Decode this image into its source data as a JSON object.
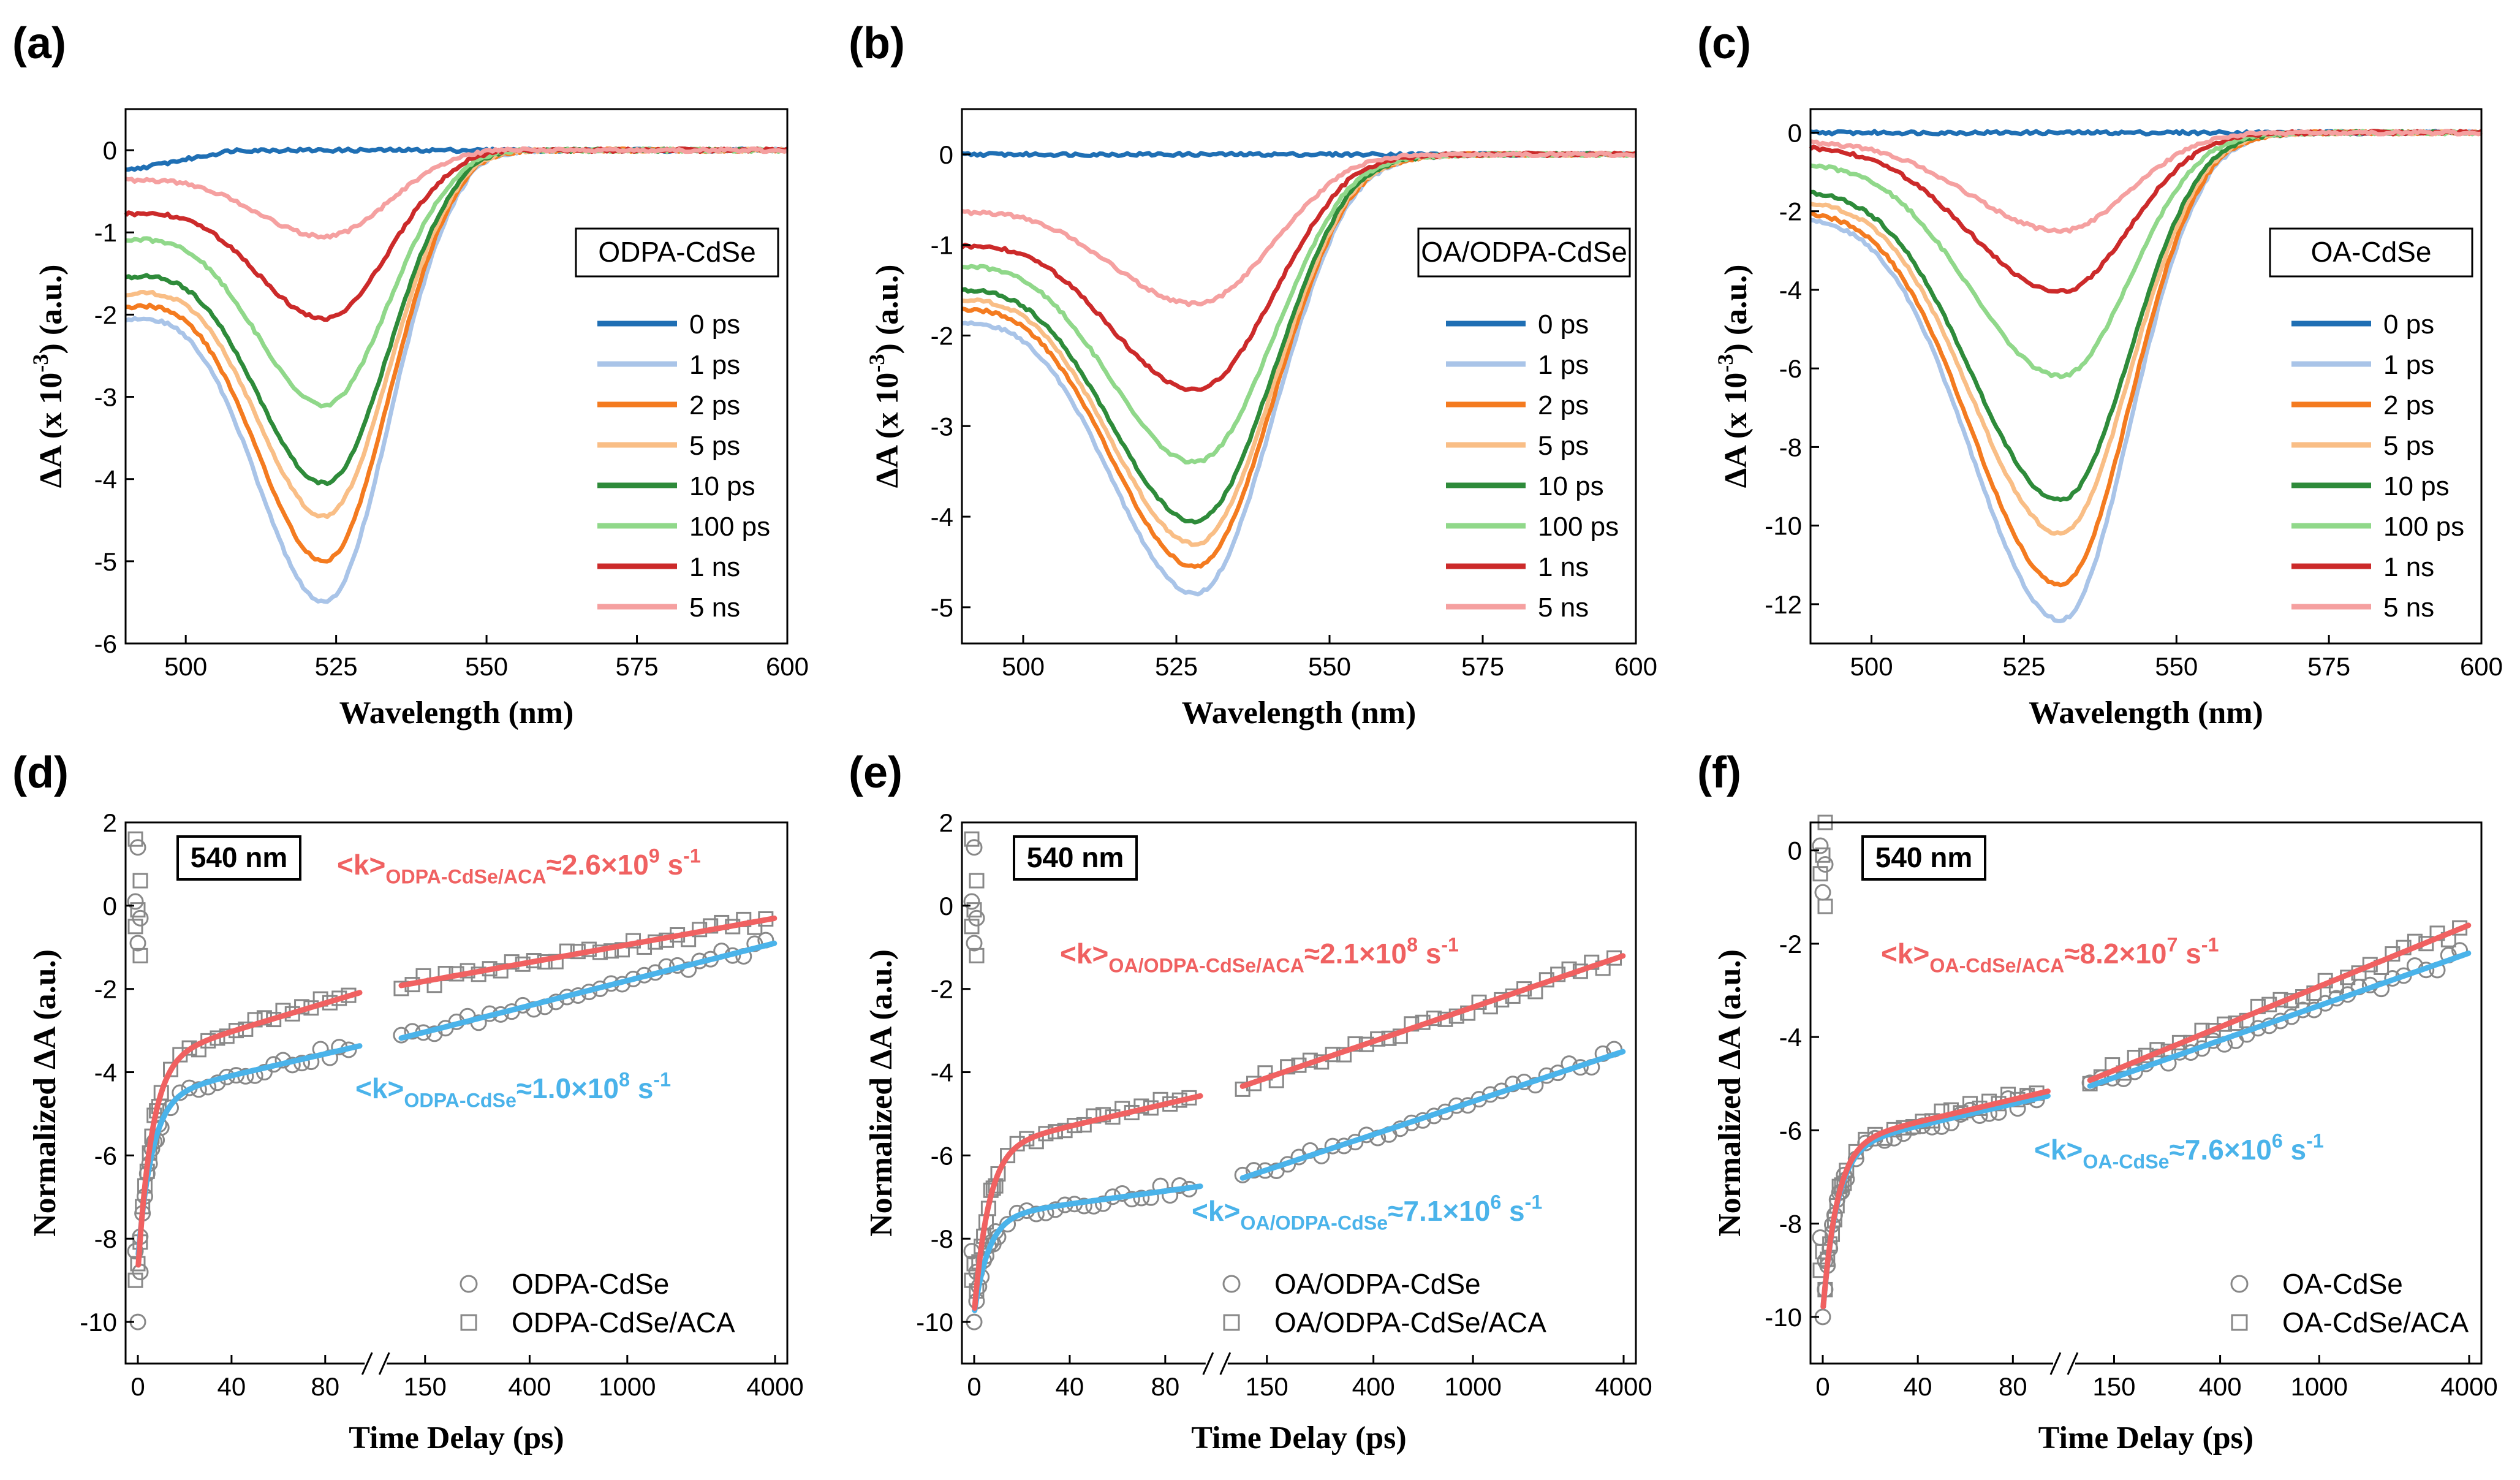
{
  "chart_data": [
    {
      "id": "a",
      "panel_label": "(a)",
      "type": "line",
      "xlabel": "Wavelength (nm)",
      "ylabel_main": "ΔA (x 10",
      "ylabel_sup": "-3",
      "ylabel_tail": ") (a.u.)",
      "xlim": [
        490,
        600
      ],
      "ylim": [
        -6,
        0.5
      ],
      "xticks": [
        500,
        525,
        550,
        575,
        600
      ],
      "xtick_labels": [
        "500",
        "525",
        "550",
        "575",
        "600"
      ],
      "yticks": [
        0,
        -1,
        -2,
        -3,
        -4,
        -5,
        -6
      ],
      "ytick_labels": [
        "0",
        "-1",
        "-2",
        "-3",
        "-4",
        "-5",
        "-6"
      ],
      "sample_label": "ODPA-CdSe",
      "spectral": {
        "center": 523,
        "sigma_left": 12,
        "sigma_right": 10,
        "floor_start": 490
      },
      "series": [
        {
          "name": "0 ps",
          "color": "#1f6fb4",
          "depth": 0.0,
          "offset": -0.25
        },
        {
          "name": "1 ps",
          "color": "#a9c4e8",
          "depth": 5.5,
          "offset": -2.0
        },
        {
          "name": "2 ps",
          "color": "#f47b20",
          "depth": 5.0,
          "offset": -1.85
        },
        {
          "name": "5 ps",
          "color": "#f9be86",
          "depth": 4.45,
          "offset": -1.7
        },
        {
          "name": "10 ps",
          "color": "#2e8b3a",
          "depth": 4.05,
          "offset": -1.5
        },
        {
          "name": "100 ps",
          "color": "#90d88a",
          "depth": 3.1,
          "offset": -1.05
        },
        {
          "name": "1 ns",
          "color": "#cc2a2a",
          "depth": 2.05,
          "offset": -0.75
        },
        {
          "name": "5 ns",
          "color": "#f5a0a0",
          "depth": 1.05,
          "offset": -0.35
        }
      ]
    },
    {
      "id": "b",
      "panel_label": "(b)",
      "type": "line",
      "xlabel": "Wavelength (nm)",
      "ylabel_main": "ΔA (x 10",
      "ylabel_sup": "-3",
      "ylabel_tail": ") (a.u.)",
      "xlim": [
        490,
        600
      ],
      "ylim": [
        -5.4,
        0.5
      ],
      "xticks": [
        500,
        525,
        550,
        575,
        600
      ],
      "xtick_labels": [
        "500",
        "525",
        "550",
        "575",
        "600"
      ],
      "yticks": [
        0,
        -1,
        -2,
        -3,
        -4,
        -5
      ],
      "ytick_labels": [
        "0",
        "-1",
        "-2",
        "-3",
        "-4",
        "-5"
      ],
      "sample_label": "OA/ODPA-CdSe",
      "spectral": {
        "center": 528,
        "sigma_left": 15,
        "sigma_right": 12,
        "floor_start": 490
      },
      "series": [
        {
          "name": "0 ps",
          "color": "#1f6fb4",
          "depth": 0.0,
          "offset": 0.0
        },
        {
          "name": "1 ps",
          "color": "#a9c4e8",
          "depth": 4.85,
          "offset": -1.75
        },
        {
          "name": "2 ps",
          "color": "#f47b20",
          "depth": 4.55,
          "offset": -1.6
        },
        {
          "name": "5 ps",
          "color": "#f9be86",
          "depth": 4.3,
          "offset": -1.5
        },
        {
          "name": "10 ps",
          "color": "#2e8b3a",
          "depth": 4.05,
          "offset": -1.4
        },
        {
          "name": "100 ps",
          "color": "#90d88a",
          "depth": 3.4,
          "offset": -1.15
        },
        {
          "name": "1 ns",
          "color": "#cc2a2a",
          "depth": 2.6,
          "offset": -0.95
        },
        {
          "name": "5 ns",
          "color": "#f5a0a0",
          "depth": 1.65,
          "offset": -0.6
        }
      ]
    },
    {
      "id": "c",
      "panel_label": "(c)",
      "type": "line",
      "xlabel": "Wavelength (nm)",
      "ylabel_main": "ΔA (x 10",
      "ylabel_sup": "-3",
      "ylabel_tail": ") (a.u.)",
      "xlim": [
        490,
        600
      ],
      "ylim": [
        -13,
        0.6
      ],
      "xticks": [
        500,
        525,
        550,
        575,
        600
      ],
      "xtick_labels": [
        "500",
        "525",
        "550",
        "575",
        "600"
      ],
      "yticks": [
        0,
        -2,
        -4,
        -6,
        -8,
        -10,
        -12
      ],
      "ytick_labels": [
        "0",
        "-2",
        "-4",
        "-6",
        "-8",
        "-10",
        "-12"
      ],
      "sample_label": "OA-CdSe",
      "spectral": {
        "center": 531,
        "sigma_left": 15,
        "sigma_right": 11,
        "floor_start": 490
      },
      "series": [
        {
          "name": "0 ps",
          "color": "#1f6fb4",
          "depth": 0.0,
          "offset": 0.0
        },
        {
          "name": "1 ps",
          "color": "#a9c4e8",
          "depth": 12.4,
          "offset": -2.0
        },
        {
          "name": "2 ps",
          "color": "#f47b20",
          "depth": 11.5,
          "offset": -1.85
        },
        {
          "name": "5 ps",
          "color": "#f9be86",
          "depth": 10.2,
          "offset": -1.6
        },
        {
          "name": "10 ps",
          "color": "#2e8b3a",
          "depth": 9.35,
          "offset": -1.35
        },
        {
          "name": "100 ps",
          "color": "#90d88a",
          "depth": 6.2,
          "offset": -0.7
        },
        {
          "name": "1 ns",
          "color": "#cc2a2a",
          "depth": 4.05,
          "offset": -0.3
        },
        {
          "name": "5 ns",
          "color": "#f5a0a0",
          "depth": 2.5,
          "offset": -0.2
        }
      ]
    },
    {
      "id": "d",
      "panel_label": "(d)",
      "type": "scatter",
      "xlabel": "Time Delay (ps)",
      "ylabel": "Normalized ΔA (a.u.)",
      "probe_label": "540 nm",
      "ylim": [
        -11,
        2
      ],
      "yticks": [
        2,
        0,
        -2,
        -4,
        -6,
        -8,
        -10
      ],
      "ytick_labels": [
        "2",
        "0",
        "-2",
        "-4",
        "-6",
        "-8",
        "-10"
      ],
      "x_left": [
        -5,
        100
      ],
      "x_right_log": [
        100,
        4000
      ],
      "xticks_left": [
        0,
        40,
        80
      ],
      "xticks_right": [
        150,
        400,
        1000,
        4000
      ],
      "xtick_labels_left": [
        "0",
        "40",
        "80"
      ],
      "xtick_labels_right": [
        "150",
        "400",
        "1000",
        "4000"
      ],
      "decay": {
        "aca": {
          "start": -8.8,
          "mid": -2.0,
          "end": -0.3
        },
        "pure": {
          "start": -8.5,
          "mid": -3.3,
          "end": -0.9
        }
      },
      "legend": [
        "ODPA-CdSe",
        "ODPA-CdSe/ACA"
      ],
      "rate_aca": {
        "prefix": "<k>",
        "sub": "ODPA-CdSe/ACA",
        "mid": "≈2.6×10",
        "exp": "9",
        "unit": " s",
        "unit_exp": "-1",
        "color": "#f06161"
      },
      "rate_pure": {
        "prefix": "<k>",
        "sub": "ODPA-CdSe",
        "mid": "≈1.0×10",
        "exp": "8",
        "unit": " s",
        "unit_exp": "-1",
        "color": "#4ab3ea"
      }
    },
    {
      "id": "e",
      "panel_label": "(e)",
      "type": "scatter",
      "xlabel": "Time Delay (ps)",
      "ylabel": "Normalized ΔA (a.u.)",
      "probe_label": "540 nm",
      "ylim": [
        -11,
        2
      ],
      "yticks": [
        2,
        0,
        -2,
        -4,
        -6,
        -8,
        -10
      ],
      "ytick_labels": [
        "2",
        "0",
        "-2",
        "-4",
        "-6",
        "-8",
        "-10"
      ],
      "x_left": [
        -5,
        100
      ],
      "x_right_log": [
        100,
        4000
      ],
      "xticks_left": [
        0,
        40,
        80
      ],
      "xticks_right": [
        150,
        400,
        1000,
        4000
      ],
      "xtick_labels_left": [
        "0",
        "40",
        "80"
      ],
      "xtick_labels_right": [
        "150",
        "400",
        "1000",
        "4000"
      ],
      "decay": {
        "aca": {
          "start": -9.8,
          "mid": -4.5,
          "end": -1.2
        },
        "pure": {
          "start": -9.8,
          "mid": -6.7,
          "end": -3.5
        }
      },
      "legend": [
        "OA/ODPA-CdSe",
        "OA/ODPA-CdSe/ACA"
      ],
      "rate_aca": {
        "prefix": "<k>",
        "sub": "OA/ODPA-CdSe/ACA",
        "mid": "≈2.1×10",
        "exp": "8",
        "unit": " s",
        "unit_exp": "-1",
        "color": "#f06161"
      },
      "rate_pure": {
        "prefix": "<k>",
        "sub": "OA/ODPA-CdSe",
        "mid": "≈7.1×10",
        "exp": "6",
        "unit": " s",
        "unit_exp": "-1",
        "color": "#4ab3ea"
      }
    },
    {
      "id": "f",
      "panel_label": "(f)",
      "type": "scatter",
      "xlabel": "Time Delay (ps)",
      "ylabel": "Normalized ΔA (a.u.)",
      "probe_label": "540 nm",
      "ylim": [
        -11,
        0.6
      ],
      "yticks": [
        0,
        -2,
        -4,
        -6,
        -8,
        -10
      ],
      "ytick_labels": [
        "0",
        "-2",
        "-4",
        "-6",
        "-8",
        "-10"
      ],
      "x_left": [
        -5,
        100
      ],
      "x_right_log": [
        100,
        4000
      ],
      "xticks_left": [
        0,
        40,
        80
      ],
      "xticks_right": [
        150,
        400,
        1000,
        4000
      ],
      "xtick_labels_left": [
        "0",
        "40",
        "80"
      ],
      "xtick_labels_right": [
        "150",
        "400",
        "1000",
        "4000"
      ],
      "decay": {
        "aca": {
          "start": -9.9,
          "mid": -5.1,
          "end": -1.6
        },
        "pure": {
          "start": -9.9,
          "mid": -5.2,
          "end": -2.2
        }
      },
      "legend": [
        "OA-CdSe",
        "OA-CdSe/ACA"
      ],
      "rate_aca": {
        "prefix": "<k>",
        "sub": "OA-CdSe/ACA",
        "mid": "≈8.2×10",
        "exp": "7",
        "unit": " s",
        "unit_exp": "-1",
        "color": "#f06161"
      },
      "rate_pure": {
        "prefix": "<k>",
        "sub": "OA-CdSe",
        "mid": "≈7.6×10",
        "exp": "6",
        "unit": " s",
        "unit_exp": "-1",
        "color": "#4ab3ea"
      }
    }
  ]
}
